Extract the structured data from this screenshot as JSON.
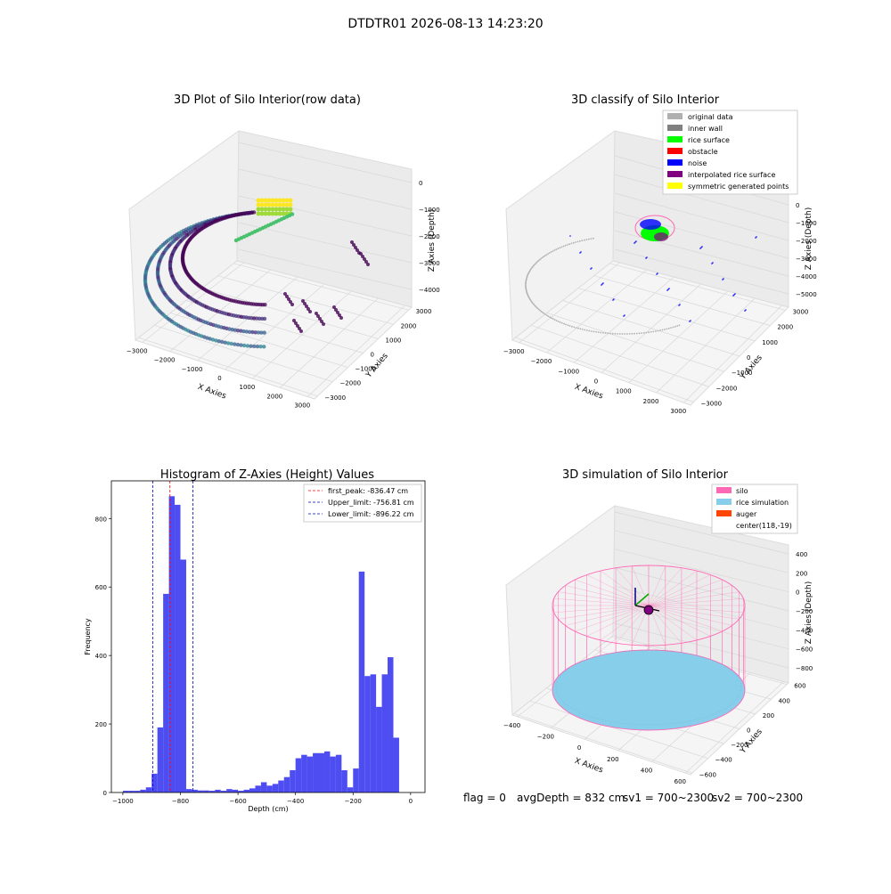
{
  "figure": {
    "suptitle": "DTDTR01 2026-08-13 14:23:20",
    "footer": {
      "flag": "flag = 0",
      "avg_depth": "avgDepth = 832 cm",
      "sv1": "sv1 = 700~2300",
      "sv2": "sv2 = 700~2300"
    }
  },
  "colors": {
    "hist_bar": "#4d4df2",
    "first_peak": "#ff0000",
    "limit_line": "#0000cc",
    "grey": "#b0b0b0",
    "inner_wall": "#808080",
    "rice_surface": "#00ff00",
    "obstacle": "#ff0000",
    "noise": "#0000ff",
    "interpolated": "#800080",
    "symmetric": "#ffff00",
    "silo": "#ff69b4",
    "rice_sim": "#87ceeb",
    "auger": "#ff4500"
  },
  "chart_data": [
    {
      "type": "scatter",
      "title": "3D Plot of Silo Interior(row data)",
      "xlabel": "X Axies",
      "ylabel": "Y Axies",
      "zlabel": "Z Axies (Depth)",
      "x_ticks": [
        "−3000",
        "−2000",
        "−1000",
        "0",
        "1000",
        "2000",
        "3000"
      ],
      "y_ticks": [
        "−3000",
        "−2000",
        "−1000",
        "0",
        "1000",
        "2000",
        "3000"
      ],
      "z_ticks": [
        "−4000",
        "−3000",
        "−2000",
        "−1000",
        "0"
      ],
      "colormap": "viridis (by depth)"
    },
    {
      "type": "scatter",
      "title": "3D classify of Silo Interior",
      "xlabel": "X Axies",
      "ylabel": "Y Axies",
      "zlabel": "Z Axies (Depth)",
      "x_ticks": [
        "−3000",
        "−2000",
        "−1000",
        "0",
        "1000",
        "2000",
        "3000"
      ],
      "y_ticks": [
        "−3000",
        "−2000",
        "−1000",
        "0",
        "1000",
        "2000",
        "3000"
      ],
      "z_ticks": [
        "−5000",
        "−4000",
        "−3000",
        "−2000",
        "−1000",
        "0"
      ],
      "legend": [
        {
          "label": "original data",
          "color": "#b0b0b0"
        },
        {
          "label": "inner wall",
          "color": "#808080"
        },
        {
          "label": "rice surface",
          "color": "#00ff00"
        },
        {
          "label": "obstacle",
          "color": "#ff0000"
        },
        {
          "label": "noise",
          "color": "#0000ff"
        },
        {
          "label": "interpolated rice surface",
          "color": "#800080"
        },
        {
          "label": "symmetric generated points",
          "color": "#ffff00"
        }
      ],
      "legend_position": "top-right"
    },
    {
      "type": "bar",
      "title": "Histogram of Z-Axies (Height) Values",
      "xlabel": "Depth (cm)",
      "ylabel": "Frequency",
      "xlim": [
        -1040,
        50
      ],
      "ylim": [
        0,
        910
      ],
      "x_ticks": [
        -1000,
        -800,
        -600,
        -400,
        -200,
        0
      ],
      "x_tick_labels": [
        "−1000",
        "−800",
        "−600",
        "−400",
        "−200",
        "0"
      ],
      "y_ticks": [
        0,
        200,
        400,
        600,
        800
      ],
      "y_tick_labels": [
        "0",
        "200",
        "400",
        "600",
        "800"
      ],
      "bin_start": -1000,
      "bin_width": 20,
      "values": [
        5,
        5,
        5,
        8,
        15,
        55,
        190,
        580,
        865,
        840,
        680,
        10,
        8,
        6,
        6,
        5,
        8,
        5,
        10,
        8,
        5,
        8,
        12,
        20,
        30,
        20,
        25,
        35,
        45,
        65,
        100,
        110,
        105,
        115,
        115,
        120,
        105,
        110,
        65,
        15,
        70,
        645,
        340,
        345,
        250,
        345,
        395,
        160
      ],
      "lines": [
        {
          "label": "first_peak: -836.47 cm",
          "x": -836.47,
          "color": "#ff0000"
        },
        {
          "label": "Upper_limit: -756.81 cm",
          "x": -756.81,
          "color": "#0000cc"
        },
        {
          "label": "Lower_limit: -896.22 cm",
          "x": -896.22,
          "color": "#0000cc"
        }
      ],
      "legend_position": "top-right"
    },
    {
      "type": "scatter",
      "title": "3D simulation of Silo Interior",
      "xlabel": "X Axies",
      "ylabel": "Y Axies",
      "zlabel": "Z Axies (Depth)",
      "x_ticks": [
        "−400",
        "−200",
        "0",
        "200",
        "400",
        "600"
      ],
      "y_ticks": [
        "−600",
        "−400",
        "−200",
        "0",
        "200",
        "400",
        "600"
      ],
      "z_ticks": [
        "−800",
        "−600",
        "−400",
        "−200",
        "0",
        "200",
        "400"
      ],
      "legend": [
        {
          "label": "silo",
          "color": "#ff69b4"
        },
        {
          "label": "rice simulation",
          "color": "#87ceeb"
        },
        {
          "label": "auger",
          "color": "#ff4500"
        },
        {
          "label": "center(118,-19)",
          "color": ""
        }
      ],
      "legend_position": "top-right"
    }
  ]
}
